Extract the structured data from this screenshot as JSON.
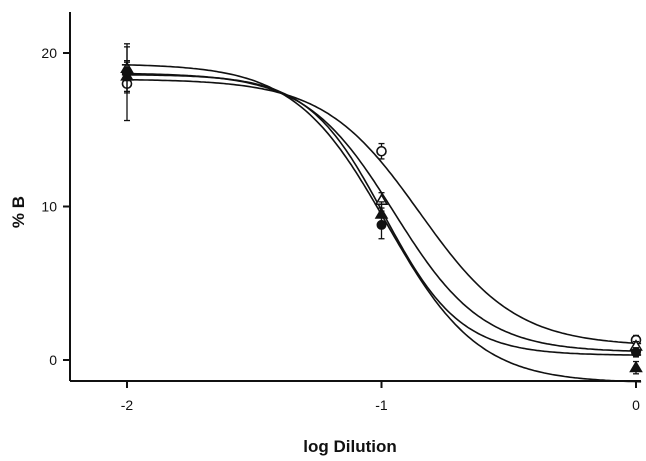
{
  "chart_data": {
    "type": "line",
    "xlabel": "log Dilution",
    "ylabel": "% B",
    "xlim": [
      -2.2,
      0.05
    ],
    "ylim": [
      -1.5,
      22.5
    ],
    "xticks": [
      -2,
      -1,
      0
    ],
    "xtick_labels": [
      "-2",
      "-1",
      "0"
    ],
    "yticks": [
      0,
      10,
      20
    ],
    "ytick_labels": [
      "0",
      "10",
      "20"
    ],
    "grid": false,
    "legend": "none",
    "series": [
      {
        "marker": "open-circle",
        "points": [
          {
            "x": -2,
            "y": 18.0,
            "err": 2.4
          },
          {
            "x": -1,
            "y": 13.6,
            "err": 0.5
          },
          {
            "x": 0,
            "y": 1.3,
            "err": 0.3
          }
        ],
        "curve": {
          "top": 18.3,
          "bottom": 0.9,
          "ec50": -0.85,
          "slope": 2.3
        }
      },
      {
        "marker": "open-triangle",
        "points": [
          {
            "x": -2,
            "y": 19.0,
            "err": 1.6
          },
          {
            "x": -1,
            "y": 10.4,
            "err": 0.5
          },
          {
            "x": 0,
            "y": 0.9,
            "err": 0.3
          }
        ],
        "curve": {
          "top": 18.7,
          "bottom": 0.5,
          "ec50": -0.95,
          "slope": 2.5
        }
      },
      {
        "marker": "filled-triangle",
        "points": [
          {
            "x": -2,
            "y": 18.5,
            "err": 1.0
          },
          {
            "x": -1,
            "y": 9.5,
            "err": 0.8
          },
          {
            "x": 0,
            "y": -0.5,
            "err": 0.4
          }
        ],
        "curve": {
          "top": 19.3,
          "bottom": -1.5,
          "ec50": -0.98,
          "slope": 2.4
        }
      },
      {
        "marker": "filled-circle",
        "points": [
          {
            "x": -2,
            "y": 18.8,
            "err": 0.6
          },
          {
            "x": -1,
            "y": 8.8,
            "err": 0.9
          },
          {
            "x": 0,
            "y": 0.5,
            "err": 0.3
          }
        ],
        "curve": {
          "top": 18.6,
          "bottom": 0.3,
          "ec50": -0.99,
          "slope": 2.9
        }
      }
    ]
  }
}
